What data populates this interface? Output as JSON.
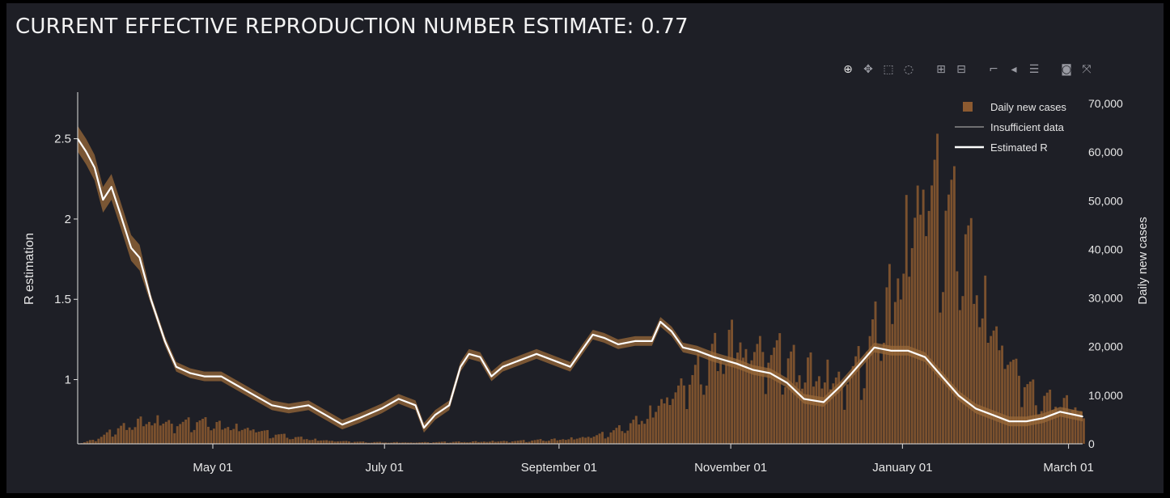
{
  "title": "CURRENT EFFECTIVE REPRODUCTION NUMBER ESTIMATE: 0.77",
  "modebar": {
    "buttons": [
      {
        "name": "zoom-icon",
        "glyph": "⊕"
      },
      {
        "name": "pan-icon",
        "glyph": "✥"
      },
      {
        "name": "box-select-icon",
        "glyph": "⬚"
      },
      {
        "name": "lasso-select-icon",
        "glyph": "◌"
      },
      {
        "name": "zoom-in-icon",
        "glyph": "⊞"
      },
      {
        "name": "zoom-out-icon",
        "glyph": "⊟"
      },
      {
        "name": "spike-lines-icon",
        "glyph": "⌐"
      },
      {
        "name": "hover-closest-icon",
        "glyph": "◂"
      },
      {
        "name": "hover-compare-icon",
        "glyph": "☰"
      },
      {
        "name": "camera-icon",
        "glyph": "◙"
      },
      {
        "name": "reset-axes-icon",
        "glyph": "⤧"
      }
    ]
  },
  "colors": {
    "background": "#1e1f26",
    "r_line": "#ffffff",
    "r_band": "#9a6a3a",
    "bars": "#8c5a30",
    "axis": "#e0e0e0",
    "text": "#e6e6e6"
  },
  "chart_data": {
    "type": "bar+line",
    "title": "CURRENT EFFECTIVE REPRODUCTION NUMBER ESTIMATE: 0.77",
    "x_start": "2020-03-14",
    "x_end": "2021-03-06",
    "x_ticks": [
      {
        "date": "2020-05-01",
        "label": "May 01"
      },
      {
        "date": "2020-07-01",
        "label": "July 01"
      },
      {
        "date": "2020-09-01",
        "label": "September 01"
      },
      {
        "date": "2020-11-01",
        "label": "November 01"
      },
      {
        "date": "2021-01-01",
        "label": "January 01"
      },
      {
        "date": "2021-03-01",
        "label": "March 01"
      }
    ],
    "y_left": {
      "label": "R estimation",
      "range": [
        0.6,
        2.78
      ],
      "ticks": [
        {
          "value": 1,
          "label": "1"
        },
        {
          "value": 1.5,
          "label": "1.5"
        },
        {
          "value": 2,
          "label": "2"
        },
        {
          "value": 2.5,
          "label": "2.5"
        }
      ]
    },
    "y_right": {
      "label": "Daily new cases",
      "range": [
        0,
        72000
      ],
      "ticks": [
        {
          "value": 0,
          "label": "0"
        },
        {
          "value": 10000,
          "label": "10,000"
        },
        {
          "value": 20000,
          "label": "20,000"
        },
        {
          "value": 30000,
          "label": "30,000"
        },
        {
          "value": 40000,
          "label": "40,000"
        },
        {
          "value": 50000,
          "label": "50,000"
        },
        {
          "value": 60000,
          "label": "60,000"
        },
        {
          "value": 70000,
          "label": "70,000"
        }
      ]
    },
    "legend": {
      "position": "top-right",
      "items": [
        {
          "name": "daily-new-cases",
          "label": "Daily new cases",
          "kind": "bar"
        },
        {
          "name": "insufficient-data",
          "label": "Insufficient data",
          "kind": "thin-line"
        },
        {
          "name": "estimated-r",
          "label": "Estimated R",
          "kind": "line"
        }
      ]
    },
    "current_r": 0.77,
    "r_series": [
      [
        "2020-03-14",
        2.5
      ],
      [
        "2020-03-17",
        2.42
      ],
      [
        "2020-03-20",
        2.32
      ],
      [
        "2020-03-23",
        2.12
      ],
      [
        "2020-03-26",
        2.2
      ],
      [
        "2020-03-29",
        2.04
      ],
      [
        "2020-04-02",
        1.82
      ],
      [
        "2020-04-05",
        1.76
      ],
      [
        "2020-04-09",
        1.5
      ],
      [
        "2020-04-14",
        1.24
      ],
      [
        "2020-04-18",
        1.08
      ],
      [
        "2020-04-23",
        1.04
      ],
      [
        "2020-04-28",
        1.02
      ],
      [
        "2020-05-04",
        1.02
      ],
      [
        "2020-05-10",
        0.96
      ],
      [
        "2020-05-16",
        0.9
      ],
      [
        "2020-05-22",
        0.84
      ],
      [
        "2020-05-28",
        0.82
      ],
      [
        "2020-06-04",
        0.84
      ],
      [
        "2020-06-10",
        0.78
      ],
      [
        "2020-06-16",
        0.72
      ],
      [
        "2020-06-22",
        0.76
      ],
      [
        "2020-06-30",
        0.82
      ],
      [
        "2020-07-06",
        0.88
      ],
      [
        "2020-07-12",
        0.84
      ],
      [
        "2020-07-15",
        0.7
      ],
      [
        "2020-07-19",
        0.78
      ],
      [
        "2020-07-24",
        0.84
      ],
      [
        "2020-07-28",
        1.08
      ],
      [
        "2020-07-31",
        1.16
      ],
      [
        "2020-08-04",
        1.14
      ],
      [
        "2020-08-08",
        1.02
      ],
      [
        "2020-08-12",
        1.08
      ],
      [
        "2020-08-18",
        1.12
      ],
      [
        "2020-08-24",
        1.16
      ],
      [
        "2020-08-30",
        1.12
      ],
      [
        "2020-09-05",
        1.08
      ],
      [
        "2020-09-09",
        1.18
      ],
      [
        "2020-09-13",
        1.28
      ],
      [
        "2020-09-17",
        1.26
      ],
      [
        "2020-09-22",
        1.22
      ],
      [
        "2020-09-28",
        1.24
      ],
      [
        "2020-10-04",
        1.24
      ],
      [
        "2020-10-07",
        1.36
      ],
      [
        "2020-10-11",
        1.3
      ],
      [
        "2020-10-15",
        1.2
      ],
      [
        "2020-10-20",
        1.18
      ],
      [
        "2020-10-26",
        1.14
      ],
      [
        "2020-11-03",
        1.1
      ],
      [
        "2020-11-09",
        1.06
      ],
      [
        "2020-11-15",
        1.04
      ],
      [
        "2020-11-21",
        0.98
      ],
      [
        "2020-11-27",
        0.88
      ],
      [
        "2020-12-04",
        0.86
      ],
      [
        "2020-12-10",
        0.96
      ],
      [
        "2020-12-17",
        1.1
      ],
      [
        "2020-12-22",
        1.2
      ],
      [
        "2020-12-28",
        1.18
      ],
      [
        "2021-01-03",
        1.18
      ],
      [
        "2021-01-09",
        1.14
      ],
      [
        "2021-01-15",
        1.02
      ],
      [
        "2021-01-21",
        0.9
      ],
      [
        "2021-01-27",
        0.82
      ],
      [
        "2021-02-02",
        0.78
      ],
      [
        "2021-02-08",
        0.74
      ],
      [
        "2021-02-14",
        0.74
      ],
      [
        "2021-02-20",
        0.76
      ],
      [
        "2021-02-26",
        0.8
      ],
      [
        "2021-03-06",
        0.77
      ]
    ],
    "cases_series": [
      [
        "2020-03-14",
        0
      ],
      [
        "2020-03-21",
        1200
      ],
      [
        "2020-03-28",
        3200
      ],
      [
        "2020-04-04",
        4600
      ],
      [
        "2020-04-11",
        4700
      ],
      [
        "2020-04-18",
        4300
      ],
      [
        "2020-04-25",
        4600
      ],
      [
        "2020-05-02",
        4100
      ],
      [
        "2020-05-09",
        3400
      ],
      [
        "2020-05-16",
        2900
      ],
      [
        "2020-05-23",
        2000
      ],
      [
        "2020-05-30",
        1300
      ],
      [
        "2020-06-06",
        900
      ],
      [
        "2020-06-13",
        600
      ],
      [
        "2020-06-20",
        450
      ],
      [
        "2020-06-27",
        350
      ],
      [
        "2020-07-04",
        300
      ],
      [
        "2020-07-11",
        300
      ],
      [
        "2020-07-18",
        350
      ],
      [
        "2020-07-25",
        400
      ],
      [
        "2020-08-01",
        450
      ],
      [
        "2020-08-08",
        500
      ],
      [
        "2020-08-15",
        600
      ],
      [
        "2020-08-22",
        700
      ],
      [
        "2020-08-29",
        900
      ],
      [
        "2020-09-05",
        1100
      ],
      [
        "2020-09-12",
        1500
      ],
      [
        "2020-09-19",
        2500
      ],
      [
        "2020-09-26",
        4000
      ],
      [
        "2020-10-01",
        5500
      ],
      [
        "2020-10-08",
        9500
      ],
      [
        "2020-10-15",
        12000
      ],
      [
        "2020-10-22",
        17000
      ],
      [
        "2020-10-29",
        20000
      ],
      [
        "2020-11-05",
        21000
      ],
      [
        "2020-11-12",
        19500
      ],
      [
        "2020-11-19",
        18000
      ],
      [
        "2020-11-26",
        16500
      ],
      [
        "2020-12-03",
        14000
      ],
      [
        "2020-12-10",
        13500
      ],
      [
        "2020-12-17",
        17000
      ],
      [
        "2020-12-24",
        26000
      ],
      [
        "2020-12-31",
        38000
      ],
      [
        "2021-01-07",
        52000
      ],
      [
        "2021-01-14",
        54000
      ],
      [
        "2021-01-21",
        44000
      ],
      [
        "2021-01-28",
        32000
      ],
      [
        "2021-02-04",
        22000
      ],
      [
        "2021-02-11",
        14000
      ],
      [
        "2021-02-18",
        10000
      ],
      [
        "2021-02-25",
        8500
      ],
      [
        "2021-03-06",
        7000
      ]
    ]
  }
}
